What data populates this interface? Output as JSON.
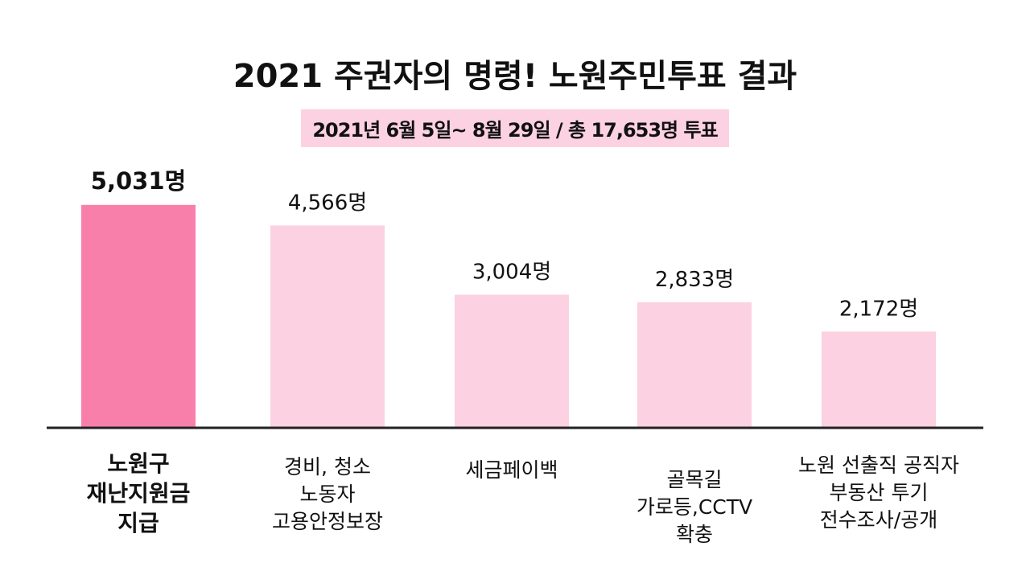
{
  "title": "2021 주권자의 명령! 노원주민투표 결과",
  "subtitle": "2021년 6월 5일~ 8월 29일 / 총 17,653명 투표",
  "colors": {
    "highlight": "#f97fab",
    "bar": "#fcd1e1",
    "axis": "#222222",
    "subtitle_bg": "#fcd1e1"
  },
  "chart_data": {
    "type": "bar",
    "title": "2021 주권자의 명령! 노원주민투표 결과",
    "subtitle": "2021년 6월 5일~ 8월 29일 / 총 17,653명 투표",
    "categories": [
      [
        "노원구",
        "재난지원금",
        "지급"
      ],
      [
        "경비, 청소",
        "노동자",
        "고용안정보장"
      ],
      [
        "세금페이백"
      ],
      [
        "골목길",
        "가로등,CCTV",
        "확충"
      ],
      [
        "노원 선출직 공직자",
        "부동산 투기",
        "전수조사/공개"
      ]
    ],
    "values": [
      5031,
      4566,
      3004,
      2833,
      2172
    ],
    "value_labels": [
      "5,031명",
      "4,566명",
      "3,004명",
      "2,833명",
      "2,172명"
    ],
    "highlight_index": 0,
    "ylim": [
      0,
      5500
    ],
    "grid": false,
    "legend": "none"
  }
}
